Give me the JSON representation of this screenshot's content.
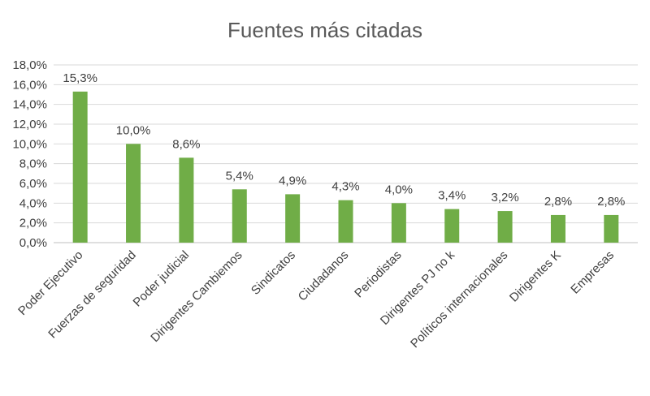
{
  "chart_data": {
    "type": "bar",
    "title": "Fuentes más citadas",
    "xlabel": "",
    "ylabel": "",
    "ylim": [
      0,
      18
    ],
    "y_ticks": [
      "0,0%",
      "2,0%",
      "4,0%",
      "6,0%",
      "8,0%",
      "10,0%",
      "12,0%",
      "14,0%",
      "16,0%",
      "18,0%"
    ],
    "grid": true,
    "legend": "none",
    "bar_color": "#70ad47",
    "categories": [
      "Poder Ejecutivo",
      "Fuerzas de seguridad",
      "Poder judicial",
      "Dirigentes Cambiemos",
      "Sindicatos",
      "Ciudadanos",
      "Periodistas",
      "Dirigentes PJ no k",
      "Políticos internacionales",
      "Dirigentes K",
      "Empresas"
    ],
    "values": [
      15.3,
      10.0,
      8.6,
      5.4,
      4.9,
      4.3,
      4.0,
      3.4,
      3.2,
      2.8,
      2.8
    ],
    "data_labels": [
      "15,3%",
      "10,0%",
      "8,6%",
      "5,4%",
      "4,9%",
      "4,3%",
      "4,0%",
      "3,4%",
      "3,2%",
      "2,8%",
      "2,8%"
    ]
  }
}
